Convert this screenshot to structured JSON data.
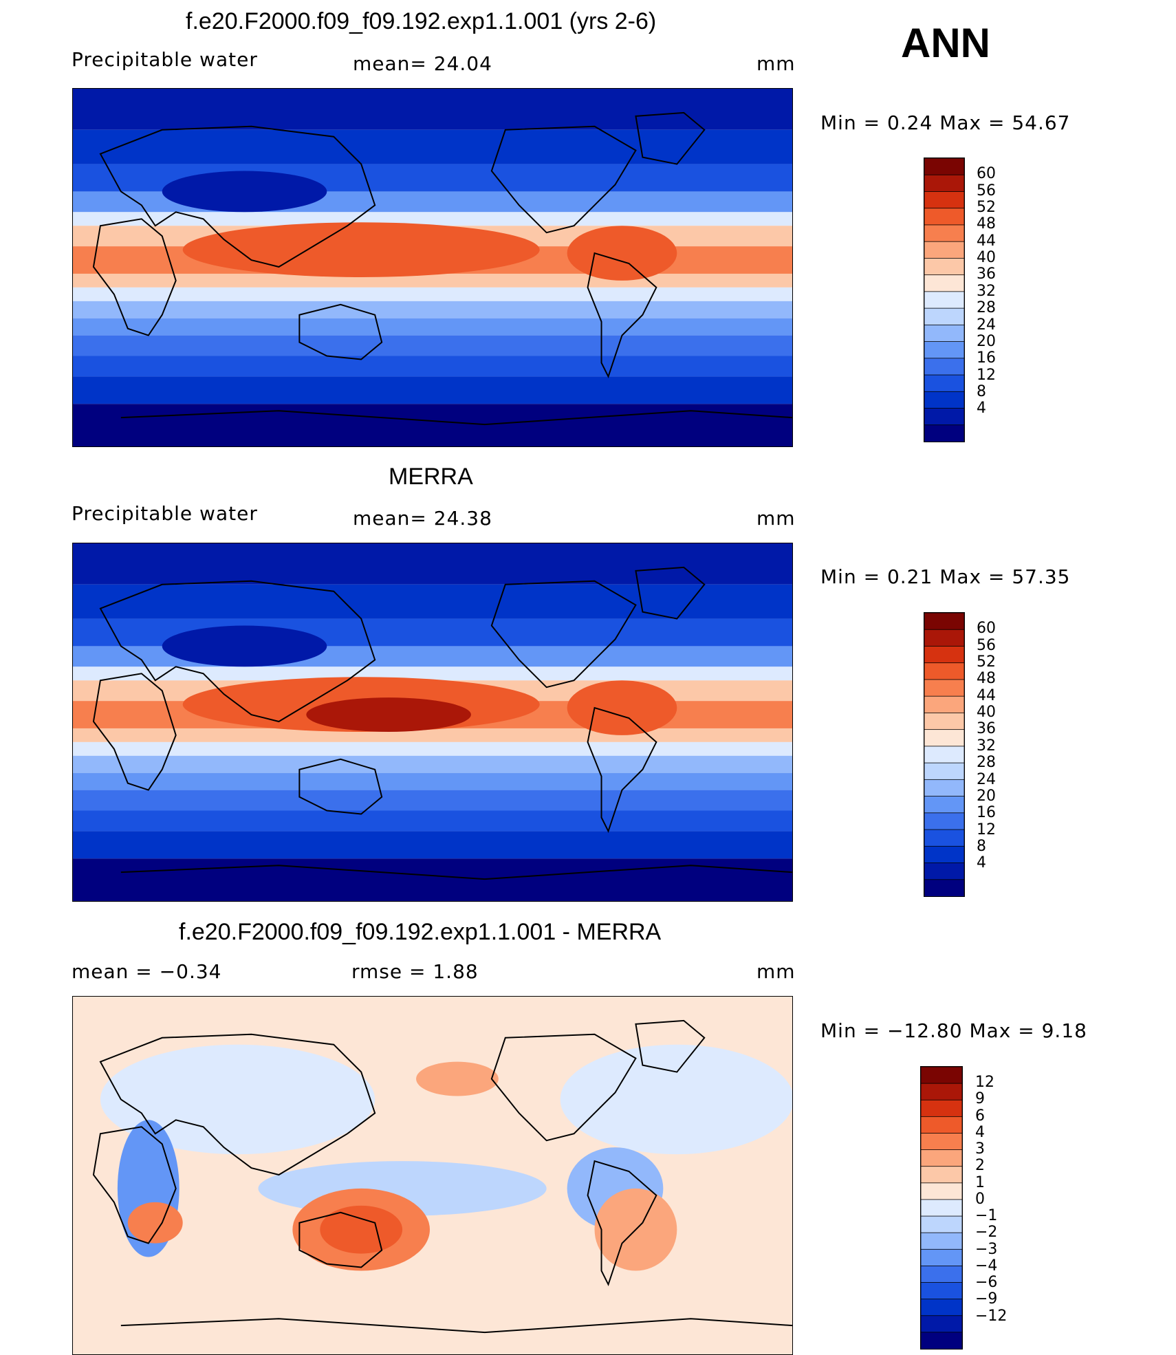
{
  "season": "ANN",
  "colors": {
    "scale": [
      "#00007f",
      "#0019a8",
      "#0034c8",
      "#1a52e0",
      "#3b70ec",
      "#6396f6",
      "#92b8fb",
      "#bdd6fd",
      "#ddeafe",
      "#fde6d6",
      "#fcc8a8",
      "#fba67c",
      "#f77f4e",
      "#ee5a2a",
      "#d63210",
      "#aa1708",
      "#7a0502"
    ],
    "diff": [
      "#00007f",
      "#0019a8",
      "#0034c8",
      "#1a52e0",
      "#3b70ec",
      "#6396f6",
      "#92b8fb",
      "#bdd6fd",
      "#ddeafe",
      "#fde6d6",
      "#fcc8a8",
      "#fba67c",
      "#f77f4e",
      "#ee5a2a",
      "#d63210",
      "#aa1708",
      "#7a0502"
    ]
  },
  "panels": [
    {
      "title": "f.e20.F2000.f09_f09.192.exp1.1.001 (yrs 2-6)",
      "left_label": "Precipitable  water",
      "mid_label": "mean=    24.04",
      "units": "mm",
      "minmax": "Min  =     0.24  Max  =    54.67",
      "ticks": [
        "60",
        "56",
        "52",
        "48",
        "44",
        "40",
        "36",
        "32",
        "28",
        "24",
        "20",
        "16",
        "12",
        "8",
        "4"
      ]
    },
    {
      "title": "MERRA",
      "left_label": "Precipitable  water",
      "mid_label": "mean=    24.38",
      "units": "mm",
      "minmax": "Min  =     0.21  Max  =    57.35",
      "ticks": [
        "60",
        "56",
        "52",
        "48",
        "44",
        "40",
        "36",
        "32",
        "28",
        "24",
        "20",
        "16",
        "12",
        "8",
        "4"
      ]
    },
    {
      "title": "f.e20.F2000.f09_f09.192.exp1.1.001 - MERRA",
      "left_label": "mean  =    −0.34",
      "mid_label": "rmse  =      1.88",
      "units": "mm",
      "minmax": "Min  = −12.80  Max  =      9.18",
      "ticks": [
        "12",
        "9",
        "6",
        "4",
        "3",
        "2",
        "1",
        "0",
        "−1",
        "−2",
        "−3",
        "−4",
        "−6",
        "−9",
        "−12"
      ]
    }
  ]
}
